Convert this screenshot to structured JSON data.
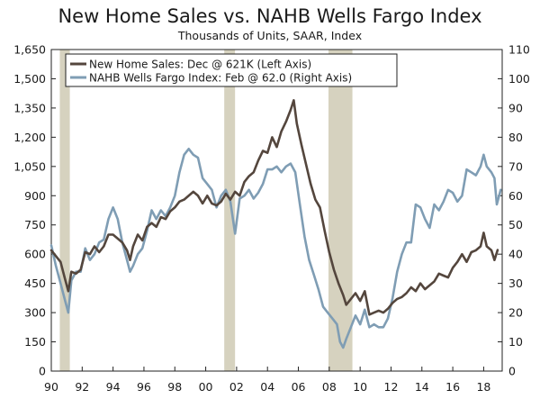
{
  "chart_data": {
    "type": "line",
    "title": "New Home Sales vs. NAHB Wells Fargo Index",
    "subtitle": "Thousands of Units, SAAR, Index",
    "x_ticks": [
      "90",
      "92",
      "94",
      "96",
      "98",
      "00",
      "02",
      "04",
      "06",
      "08",
      "10",
      "12",
      "14",
      "16",
      "18"
    ],
    "x_range": [
      1990,
      2019.2
    ],
    "left_axis": {
      "ticks": [
        "0",
        "150",
        "300",
        "450",
        "600",
        "750",
        "900",
        "1,050",
        "1,200",
        "1,350",
        "1,500",
        "1,650"
      ],
      "ylim": [
        0,
        1650
      ]
    },
    "right_axis": {
      "ticks": [
        "0",
        "10",
        "20",
        "30",
        "40",
        "50",
        "60",
        "70",
        "80",
        "90",
        "100",
        "110"
      ],
      "ylim": [
        0,
        110
      ]
    },
    "recessions": [
      [
        1990.55,
        1991.2
      ],
      [
        2001.2,
        2001.9
      ],
      [
        2007.95,
        2009.5
      ]
    ],
    "grid": false,
    "legend_placement": "top-left",
    "series": [
      {
        "name": "New Home Sales: Dec @ 621K (Left Axis)",
        "axis": "left",
        "color": "#54463d",
        "points": [
          [
            1990.0,
            620
          ],
          [
            1990.3,
            590
          ],
          [
            1990.6,
            560
          ],
          [
            1990.9,
            470
          ],
          [
            1991.1,
            410
          ],
          [
            1991.3,
            510
          ],
          [
            1991.6,
            500
          ],
          [
            1991.9,
            520
          ],
          [
            1992.2,
            610
          ],
          [
            1992.5,
            600
          ],
          [
            1992.8,
            640
          ],
          [
            1993.1,
            610
          ],
          [
            1993.4,
            640
          ],
          [
            1993.7,
            700
          ],
          [
            1994.0,
            700
          ],
          [
            1994.3,
            680
          ],
          [
            1994.6,
            660
          ],
          [
            1994.9,
            620
          ],
          [
            1995.1,
            570
          ],
          [
            1995.3,
            640
          ],
          [
            1995.6,
            700
          ],
          [
            1995.9,
            670
          ],
          [
            1996.2,
            740
          ],
          [
            1996.5,
            760
          ],
          [
            1996.8,
            740
          ],
          [
            1997.1,
            790
          ],
          [
            1997.4,
            780
          ],
          [
            1997.7,
            820
          ],
          [
            1998.0,
            840
          ],
          [
            1998.3,
            870
          ],
          [
            1998.6,
            880
          ],
          [
            1998.9,
            900
          ],
          [
            1999.2,
            920
          ],
          [
            1999.5,
            900
          ],
          [
            1999.8,
            860
          ],
          [
            2000.1,
            900
          ],
          [
            2000.4,
            860
          ],
          [
            2000.7,
            850
          ],
          [
            2001.0,
            870
          ],
          [
            2001.3,
            910
          ],
          [
            2001.6,
            880
          ],
          [
            2001.9,
            920
          ],
          [
            2002.2,
            900
          ],
          [
            2002.5,
            970
          ],
          [
            2002.8,
            1000
          ],
          [
            2003.1,
            1020
          ],
          [
            2003.4,
            1080
          ],
          [
            2003.7,
            1130
          ],
          [
            2004.0,
            1120
          ],
          [
            2004.3,
            1200
          ],
          [
            2004.6,
            1150
          ],
          [
            2004.9,
            1230
          ],
          [
            2005.2,
            1280
          ],
          [
            2005.5,
            1340
          ],
          [
            2005.7,
            1390
          ],
          [
            2005.9,
            1270
          ],
          [
            2006.2,
            1160
          ],
          [
            2006.5,
            1060
          ],
          [
            2006.8,
            960
          ],
          [
            2007.1,
            880
          ],
          [
            2007.4,
            840
          ],
          [
            2007.7,
            720
          ],
          [
            2008.0,
            610
          ],
          [
            2008.3,
            520
          ],
          [
            2008.6,
            450
          ],
          [
            2008.9,
            390
          ],
          [
            2009.1,
            340
          ],
          [
            2009.4,
            370
          ],
          [
            2009.7,
            400
          ],
          [
            2010.0,
            360
          ],
          [
            2010.3,
            410
          ],
          [
            2010.6,
            290
          ],
          [
            2010.9,
            300
          ],
          [
            2011.2,
            310
          ],
          [
            2011.5,
            300
          ],
          [
            2011.8,
            320
          ],
          [
            2012.1,
            350
          ],
          [
            2012.4,
            370
          ],
          [
            2012.7,
            380
          ],
          [
            2013.0,
            400
          ],
          [
            2013.3,
            430
          ],
          [
            2013.6,
            410
          ],
          [
            2013.9,
            450
          ],
          [
            2014.2,
            420
          ],
          [
            2014.5,
            440
          ],
          [
            2014.8,
            460
          ],
          [
            2015.1,
            500
          ],
          [
            2015.4,
            490
          ],
          [
            2015.7,
            480
          ],
          [
            2016.0,
            530
          ],
          [
            2016.3,
            560
          ],
          [
            2016.6,
            600
          ],
          [
            2016.9,
            560
          ],
          [
            2017.2,
            610
          ],
          [
            2017.5,
            620
          ],
          [
            2017.8,
            640
          ],
          [
            2018.0,
            710
          ],
          [
            2018.2,
            640
          ],
          [
            2018.5,
            620
          ],
          [
            2018.7,
            570
          ],
          [
            2018.9,
            621
          ]
        ]
      },
      {
        "name": "NAHB Wells Fargo Index: Feb @ 62.0 (Right Axis)",
        "axis": "right",
        "color": "#7f9db4",
        "points": [
          [
            1990.0,
            43
          ],
          [
            1990.3,
            36
          ],
          [
            1990.6,
            30
          ],
          [
            1990.9,
            24
          ],
          [
            1991.1,
            20
          ],
          [
            1991.3,
            31
          ],
          [
            1991.6,
            34
          ],
          [
            1991.9,
            34
          ],
          [
            1992.2,
            42
          ],
          [
            1992.5,
            38
          ],
          [
            1992.8,
            40
          ],
          [
            1993.1,
            44
          ],
          [
            1993.4,
            45
          ],
          [
            1993.7,
            52
          ],
          [
            1994.0,
            56
          ],
          [
            1994.3,
            52
          ],
          [
            1994.6,
            44
          ],
          [
            1994.9,
            38
          ],
          [
            1995.1,
            34
          ],
          [
            1995.3,
            36
          ],
          [
            1995.6,
            40
          ],
          [
            1995.9,
            42
          ],
          [
            1996.2,
            48
          ],
          [
            1996.5,
            55
          ],
          [
            1996.8,
            52
          ],
          [
            1997.1,
            55
          ],
          [
            1997.4,
            53
          ],
          [
            1997.7,
            56
          ],
          [
            1998.0,
            60
          ],
          [
            1998.3,
            68
          ],
          [
            1998.6,
            74
          ],
          [
            1998.9,
            76
          ],
          [
            1999.2,
            74
          ],
          [
            1999.5,
            73
          ],
          [
            1999.8,
            66
          ],
          [
            2000.1,
            64
          ],
          [
            2000.4,
            62
          ],
          [
            2000.7,
            56
          ],
          [
            2001.0,
            60
          ],
          [
            2001.3,
            62
          ],
          [
            2001.6,
            58
          ],
          [
            2001.9,
            47
          ],
          [
            2002.2,
            59
          ],
          [
            2002.5,
            60
          ],
          [
            2002.8,
            62
          ],
          [
            2003.1,
            59
          ],
          [
            2003.4,
            61
          ],
          [
            2003.7,
            64
          ],
          [
            2004.0,
            69
          ],
          [
            2004.3,
            69
          ],
          [
            2004.6,
            70
          ],
          [
            2004.9,
            68
          ],
          [
            2005.2,
            70
          ],
          [
            2005.5,
            71
          ],
          [
            2005.8,
            68
          ],
          [
            2006.1,
            57
          ],
          [
            2006.4,
            46
          ],
          [
            2006.7,
            38
          ],
          [
            2007.0,
            33
          ],
          [
            2007.3,
            28
          ],
          [
            2007.6,
            22
          ],
          [
            2007.9,
            20
          ],
          [
            2008.2,
            18
          ],
          [
            2008.5,
            16
          ],
          [
            2008.7,
            10
          ],
          [
            2008.9,
            8
          ],
          [
            2009.1,
            11
          ],
          [
            2009.4,
            15
          ],
          [
            2009.7,
            19
          ],
          [
            2010.0,
            16
          ],
          [
            2010.3,
            21
          ],
          [
            2010.6,
            15
          ],
          [
            2010.9,
            16
          ],
          [
            2011.2,
            15
          ],
          [
            2011.5,
            15
          ],
          [
            2011.8,
            18
          ],
          [
            2012.1,
            25
          ],
          [
            2012.4,
            34
          ],
          [
            2012.7,
            40
          ],
          [
            2013.0,
            44
          ],
          [
            2013.3,
            44
          ],
          [
            2013.6,
            57
          ],
          [
            2013.9,
            56
          ],
          [
            2014.2,
            52
          ],
          [
            2014.5,
            49
          ],
          [
            2014.8,
            57
          ],
          [
            2015.1,
            55
          ],
          [
            2015.4,
            58
          ],
          [
            2015.7,
            62
          ],
          [
            2016.0,
            61
          ],
          [
            2016.3,
            58
          ],
          [
            2016.6,
            60
          ],
          [
            2016.9,
            69
          ],
          [
            2017.2,
            68
          ],
          [
            2017.5,
            67
          ],
          [
            2017.8,
            70
          ],
          [
            2018.0,
            74
          ],
          [
            2018.2,
            70
          ],
          [
            2018.5,
            68
          ],
          [
            2018.7,
            66
          ],
          [
            2018.85,
            57
          ],
          [
            2019.0,
            60
          ],
          [
            2019.1,
            62
          ]
        ]
      }
    ]
  },
  "colors": {
    "recession_band": "#d6d2bf",
    "axis": "#222222"
  }
}
